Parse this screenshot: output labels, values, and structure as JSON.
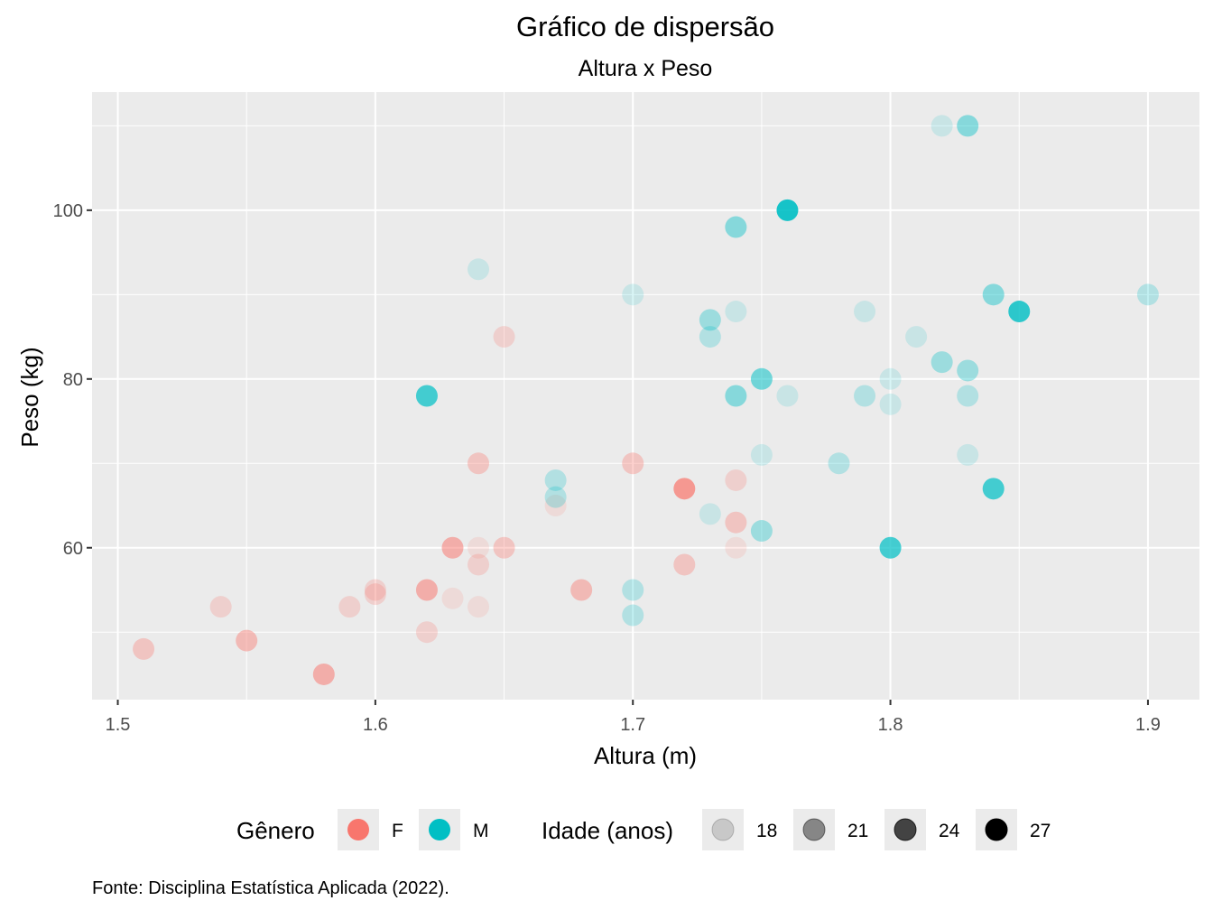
{
  "chart_data": {
    "type": "scatter",
    "title": "Gráfico de dispersão",
    "subtitle": "Altura x Peso",
    "xlabel": "Altura (m)",
    "ylabel": "Peso (kg)",
    "xlim": [
      1.49,
      1.92
    ],
    "ylim": [
      42,
      114
    ],
    "xticks": [
      1.5,
      1.6,
      1.7,
      1.8,
      1.9
    ],
    "yticks": [
      60,
      80,
      100
    ],
    "grid": true,
    "legend_position": "bottom",
    "colors": {
      "F": "#F8766D",
      "M": "#00BFC4"
    },
    "color_legend": {
      "title": "Gênero",
      "entries": [
        "F",
        "M"
      ]
    },
    "alpha_legend": {
      "title": "Idade (anos)",
      "entries": [
        18,
        21,
        24,
        27
      ]
    },
    "caption": "Fonte: Disciplina Estatística Aplicada (2022).",
    "series": [
      {
        "name": "F",
        "points": [
          {
            "x": 1.51,
            "y": 48,
            "age": 20
          },
          {
            "x": 1.54,
            "y": 53,
            "age": 19
          },
          {
            "x": 1.55,
            "y": 49,
            "age": 21
          },
          {
            "x": 1.58,
            "y": 45,
            "age": 22
          },
          {
            "x": 1.59,
            "y": 53,
            "age": 19
          },
          {
            "x": 1.6,
            "y": 55,
            "age": 19
          },
          {
            "x": 1.6,
            "y": 54.5,
            "age": 19
          },
          {
            "x": 1.62,
            "y": 55,
            "age": 22
          },
          {
            "x": 1.62,
            "y": 50,
            "age": 19
          },
          {
            "x": 1.63,
            "y": 60,
            "age": 22
          },
          {
            "x": 1.63,
            "y": 54,
            "age": 18
          },
          {
            "x": 1.64,
            "y": 70,
            "age": 20
          },
          {
            "x": 1.64,
            "y": 60,
            "age": 18
          },
          {
            "x": 1.64,
            "y": 58,
            "age": 19
          },
          {
            "x": 1.64,
            "y": 53,
            "age": 18
          },
          {
            "x": 1.65,
            "y": 85,
            "age": 19
          },
          {
            "x": 1.65,
            "y": 60,
            "age": 20
          },
          {
            "x": 1.67,
            "y": 65,
            "age": 18
          },
          {
            "x": 1.68,
            "y": 55,
            "age": 21
          },
          {
            "x": 1.7,
            "y": 70,
            "age": 20
          },
          {
            "x": 1.72,
            "y": 67,
            "age": 24
          },
          {
            "x": 1.72,
            "y": 58,
            "age": 20
          },
          {
            "x": 1.74,
            "y": 68,
            "age": 19
          },
          {
            "x": 1.74,
            "y": 63,
            "age": 20
          },
          {
            "x": 1.74,
            "y": 60,
            "age": 18
          }
        ]
      },
      {
        "name": "M",
        "points": [
          {
            "x": 1.62,
            "y": 78,
            "age": 24
          },
          {
            "x": 1.64,
            "y": 93,
            "age": 18
          },
          {
            "x": 1.67,
            "y": 68,
            "age": 19
          },
          {
            "x": 1.67,
            "y": 66,
            "age": 19
          },
          {
            "x": 1.7,
            "y": 90,
            "age": 18
          },
          {
            "x": 1.7,
            "y": 55,
            "age": 19
          },
          {
            "x": 1.7,
            "y": 52,
            "age": 19
          },
          {
            "x": 1.73,
            "y": 87,
            "age": 20
          },
          {
            "x": 1.73,
            "y": 85,
            "age": 19
          },
          {
            "x": 1.73,
            "y": 64,
            "age": 18
          },
          {
            "x": 1.74,
            "y": 98,
            "age": 21
          },
          {
            "x": 1.74,
            "y": 88,
            "age": 18
          },
          {
            "x": 1.74,
            "y": 78,
            "age": 21
          },
          {
            "x": 1.75,
            "y": 80,
            "age": 22
          },
          {
            "x": 1.75,
            "y": 71,
            "age": 18
          },
          {
            "x": 1.75,
            "y": 62,
            "age": 20
          },
          {
            "x": 1.76,
            "y": 100,
            "age": 26
          },
          {
            "x": 1.76,
            "y": 78,
            "age": 18
          },
          {
            "x": 1.78,
            "y": 70,
            "age": 19
          },
          {
            "x": 1.79,
            "y": 88,
            "age": 18
          },
          {
            "x": 1.79,
            "y": 78,
            "age": 19
          },
          {
            "x": 1.8,
            "y": 80,
            "age": 18
          },
          {
            "x": 1.8,
            "y": 77,
            "age": 18
          },
          {
            "x": 1.8,
            "y": 60,
            "age": 24
          },
          {
            "x": 1.81,
            "y": 85,
            "age": 18
          },
          {
            "x": 1.82,
            "y": 110,
            "age": 18
          },
          {
            "x": 1.82,
            "y": 82,
            "age": 20
          },
          {
            "x": 1.83,
            "y": 110,
            "age": 21
          },
          {
            "x": 1.83,
            "y": 81,
            "age": 20
          },
          {
            "x": 1.83,
            "y": 78,
            "age": 19
          },
          {
            "x": 1.83,
            "y": 71,
            "age": 18
          },
          {
            "x": 1.84,
            "y": 90,
            "age": 21
          },
          {
            "x": 1.84,
            "y": 67,
            "age": 24
          },
          {
            "x": 1.85,
            "y": 88,
            "age": 25
          },
          {
            "x": 1.9,
            "y": 90,
            "age": 19
          }
        ]
      }
    ]
  }
}
